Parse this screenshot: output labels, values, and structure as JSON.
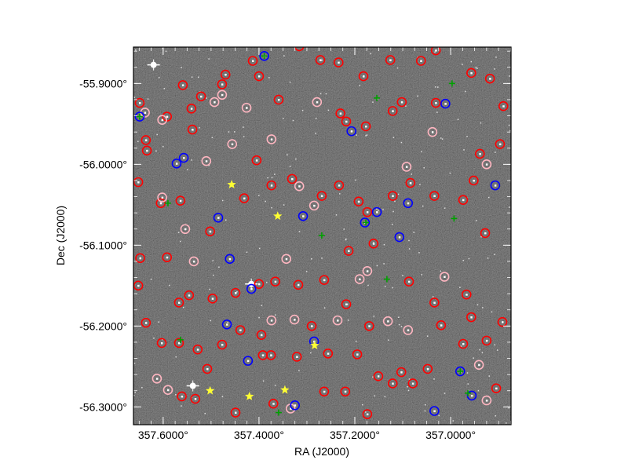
{
  "chart_data": {
    "type": "scatter",
    "title": "",
    "xlabel": "RA (J2000)",
    "ylabel": "Dec (J2000)",
    "xlim": [
      357.662,
      356.874
    ],
    "ylim": [
      -56.322,
      -55.855
    ],
    "x_reversed": true,
    "grid": false,
    "background": "sky image (grayscale)",
    "x_ticks": [
      {
        "value": 357.6,
        "label": "357.6000°"
      },
      {
        "value": 357.4,
        "label": "357.4000°"
      },
      {
        "value": 357.2,
        "label": "357.2000°"
      },
      {
        "value": 357.0,
        "label": "357.0000°"
      }
    ],
    "y_ticks": [
      {
        "value": -55.9,
        "label": "-55.9000°"
      },
      {
        "value": -56.0,
        "label": "-56.0000°"
      },
      {
        "value": -56.1,
        "label": "-56.1000°"
      },
      {
        "value": -56.2,
        "label": "-56.2000°"
      },
      {
        "value": -56.3,
        "label": "-56.3000°"
      }
    ],
    "series": [
      {
        "marker": "circle",
        "color": "#ff0000",
        "points": [
          [
            357.649,
            -55.924
          ],
          [
            357.636,
            -55.97
          ],
          [
            357.634,
            -55.983
          ],
          [
            357.592,
            -55.941
          ],
          [
            357.559,
            -55.902
          ],
          [
            357.541,
            -55.931
          ],
          [
            357.521,
            -55.916
          ],
          [
            357.539,
            -55.957
          ],
          [
            357.47,
            -55.889
          ],
          [
            357.477,
            -55.901
          ],
          [
            357.413,
            -55.872
          ],
          [
            357.4,
            -55.891
          ],
          [
            357.359,
            -55.92
          ],
          [
            357.316,
            -55.854
          ],
          [
            357.272,
            -55.871
          ],
          [
            357.234,
            -55.874
          ],
          [
            357.23,
            -55.937
          ],
          [
            357.218,
            -55.947
          ],
          [
            357.182,
            -55.891
          ],
          [
            357.177,
            -55.953
          ],
          [
            357.126,
            -55.871
          ],
          [
            357.121,
            -55.934
          ],
          [
            357.102,
            -55.923
          ],
          [
            357.062,
            -55.872
          ],
          [
            357.031,
            -55.859
          ],
          [
            357.031,
            -55.924
          ],
          [
            356.957,
            -55.887
          ],
          [
            356.918,
            -55.894
          ],
          [
            356.89,
            -55.928
          ],
          [
            356.897,
            -55.975
          ],
          [
            356.939,
            -55.987
          ],
          [
            357.652,
            -56.022
          ],
          [
            357.605,
            -56.048
          ],
          [
            357.564,
            -56.045
          ],
          [
            357.502,
            -56.083
          ],
          [
            357.431,
            -56.042
          ],
          [
            357.405,
            -55.995
          ],
          [
            357.374,
            -56.026
          ],
          [
            357.331,
            -56.018
          ],
          [
            357.269,
            -56.039
          ],
          [
            357.233,
            -56.026
          ],
          [
            357.192,
            -56.046
          ],
          [
            357.174,
            -56.059
          ],
          [
            357.121,
            -56.039
          ],
          [
            357.084,
            -56.023
          ],
          [
            357.034,
            -56.039
          ],
          [
            356.974,
            -56.044
          ],
          [
            356.952,
            -56.02
          ],
          [
            356.928,
            -56.085
          ],
          [
            357.648,
            -56.116
          ],
          [
            357.592,
            -56.115
          ],
          [
            357.567,
            -56.171
          ],
          [
            357.546,
            -56.162
          ],
          [
            357.497,
            -56.166
          ],
          [
            357.449,
            -56.159
          ],
          [
            357.4,
            -56.148
          ],
          [
            357.366,
            -56.145
          ],
          [
            357.318,
            -56.149
          ],
          [
            357.264,
            -56.143
          ],
          [
            357.213,
            -56.107
          ],
          [
            357.161,
            -56.098
          ],
          [
            357.087,
            -56.145
          ],
          [
            357.034,
            -56.171
          ],
          [
            356.967,
            -56.161
          ],
          [
            356.892,
            -56.195
          ],
          [
            357.652,
            -56.15
          ],
          [
            357.636,
            -56.196
          ],
          [
            357.603,
            -56.221
          ],
          [
            357.567,
            -56.221
          ],
          [
            357.528,
            -56.229
          ],
          [
            357.508,
            -56.253
          ],
          [
            357.477,
            -56.223
          ],
          [
            357.392,
            -56.236
          ],
          [
            357.375,
            -56.236
          ],
          [
            357.321,
            -56.238
          ],
          [
            357.256,
            -56.234
          ],
          [
            357.195,
            -56.235
          ],
          [
            357.151,
            -56.262
          ],
          [
            357.103,
            -56.257
          ],
          [
            357.048,
            -56.253
          ],
          [
            356.957,
            -56.189
          ],
          [
            356.925,
            -56.218
          ],
          [
            356.905,
            -56.277
          ],
          [
            357.561,
            -56.287
          ],
          [
            357.533,
            -56.29
          ],
          [
            357.449,
            -56.307
          ],
          [
            357.37,
            -56.296
          ],
          [
            357.264,
            -56.281
          ],
          [
            357.22,
            -56.281
          ],
          [
            357.174,
            -56.309
          ],
          [
            357.121,
            -56.271
          ],
          [
            357.079,
            -56.271
          ],
          [
            356.974,
            -56.222
          ],
          [
            357.02,
            -56.199
          ],
          [
            357.17,
            -56.2
          ],
          [
            357.218,
            -56.173
          ],
          [
            357.29,
            -56.2
          ],
          [
            357.439,
            -56.205
          ],
          [
            357.395,
            -56.211
          ]
        ]
      },
      {
        "marker": "circle",
        "color": "#ffb6c1",
        "points": [
          [
            357.638,
            -55.936
          ],
          [
            357.602,
            -55.945
          ],
          [
            357.493,
            -55.923
          ],
          [
            357.456,
            -55.975
          ],
          [
            357.51,
            -55.996
          ],
          [
            357.426,
            -55.93
          ],
          [
            357.374,
            -55.969
          ],
          [
            357.316,
            -56.027
          ],
          [
            357.285,
            -56.051
          ],
          [
            357.092,
            -56.003
          ],
          [
            357.038,
            -55.96
          ],
          [
            356.925,
            -56.0
          ],
          [
            357.602,
            -56.041
          ],
          [
            357.554,
            -56.08
          ],
          [
            357.536,
            -56.12
          ],
          [
            357.343,
            -56.117
          ],
          [
            357.174,
            -56.132
          ],
          [
            357.013,
            -56.139
          ],
          [
            357.374,
            -56.193
          ],
          [
            357.326,
            -56.192
          ],
          [
            357.236,
            -56.193
          ],
          [
            357.131,
            -56.194
          ],
          [
            357.089,
            -56.205
          ],
          [
            356.941,
            -56.248
          ],
          [
            357.613,
            -56.265
          ],
          [
            357.59,
            -56.279
          ],
          [
            357.334,
            -56.302
          ],
          [
            356.925,
            -56.292
          ],
          [
            357.19,
            -56.142
          ],
          [
            357.477,
            -55.914
          ],
          [
            357.279,
            -55.923
          ]
        ]
      },
      {
        "marker": "circle",
        "color": "#0000ff",
        "points": [
          [
            357.389,
            -55.866
          ],
          [
            357.649,
            -55.941
          ],
          [
            357.572,
            -55.999
          ],
          [
            357.557,
            -55.992
          ],
          [
            357.308,
            -56.064
          ],
          [
            357.485,
            -56.066
          ],
          [
            357.461,
            -56.117
          ],
          [
            357.416,
            -56.154
          ],
          [
            357.467,
            -56.198
          ],
          [
            357.423,
            -56.243
          ],
          [
            357.325,
            -56.298
          ],
          [
            357.207,
            -55.959
          ],
          [
            357.179,
            -56.072
          ],
          [
            357.154,
            -56.059
          ],
          [
            357.107,
            -56.09
          ],
          [
            357.089,
            -56.048
          ],
          [
            357.011,
            -55.925
          ],
          [
            356.98,
            -56.256
          ],
          [
            356.956,
            -56.286
          ],
          [
            357.034,
            -56.305
          ],
          [
            356.907,
            -56.026
          ],
          [
            357.285,
            -56.219
          ]
        ]
      },
      {
        "marker": "plus",
        "color": "#00a000",
        "points": [
          [
            357.389,
            -55.866
          ],
          [
            357.649,
            -55.941
          ],
          [
            357.59,
            -56.048
          ],
          [
            357.564,
            -56.217
          ],
          [
            357.177,
            -56.072
          ],
          [
            356.993,
            -56.067
          ],
          [
            356.997,
            -55.9
          ],
          [
            357.133,
            -56.142
          ],
          [
            357.269,
            -56.088
          ],
          [
            357.359,
            -56.307
          ],
          [
            357.154,
            -55.918
          ],
          [
            356.964,
            -56.283
          ],
          [
            356.98,
            -56.256
          ]
        ]
      },
      {
        "marker": "star",
        "color": "#ffff33",
        "points": [
          [
            357.457,
            -56.025
          ],
          [
            357.361,
            -56.064
          ],
          [
            357.284,
            -56.224
          ],
          [
            357.346,
            -56.279
          ],
          [
            357.42,
            -56.287
          ],
          [
            357.502,
            -56.28
          ]
        ]
      }
    ],
    "bright_stars": [
      [
        357.62,
        -55.877
      ],
      [
        357.538,
        -56.274
      ],
      [
        357.416,
        -56.148
      ]
    ]
  }
}
